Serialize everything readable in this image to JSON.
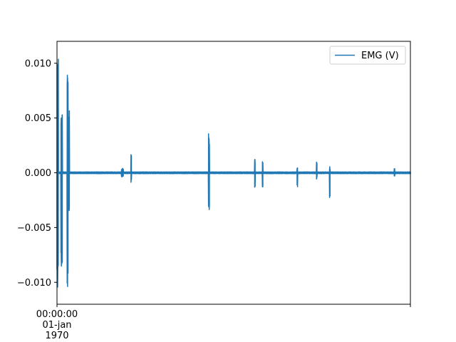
{
  "chart_data": {
    "type": "line",
    "title": "",
    "xlabel": "",
    "ylabel": "",
    "xlim": [
      0,
      100
    ],
    "ylim": [
      -0.012,
      0.012
    ],
    "grid": false,
    "legend": {
      "position": "top-right",
      "entries": [
        "EMG (V)"
      ]
    },
    "y_ticks": [
      {
        "value": 0.01,
        "label": "0.010"
      },
      {
        "value": 0.005,
        "label": "0.005"
      },
      {
        "value": 0.0,
        "label": "0.000"
      },
      {
        "value": -0.005,
        "label": "−0.005"
      },
      {
        "value": -0.01,
        "label": "−0.010"
      }
    ],
    "x_ticks": [
      {
        "value": 0,
        "lines": [
          "00:00:00",
          "01-jan",
          "1970"
        ]
      },
      {
        "value": 100,
        "lines": []
      }
    ],
    "series": [
      {
        "name": "EMG (V)",
        "color": "#1f77b4",
        "noise_amplitude": 8e-05,
        "bursts": [
          {
            "x": 0.0,
            "width": 0.8,
            "min": -0.011,
            "max": 0.011
          },
          {
            "x": 1.3,
            "width": 0.4,
            "min": -0.0095,
            "max": 0.0055
          },
          {
            "x": 3.0,
            "width": 0.3,
            "min": -0.011,
            "max": 0.0105
          },
          {
            "x": 3.4,
            "width": 0.2,
            "min": -0.0038,
            "max": 0.0063
          },
          {
            "x": 18.5,
            "width": 0.6,
            "min": -0.0004,
            "max": 0.0004
          },
          {
            "x": 21.0,
            "width": 0.2,
            "min": -0.0009,
            "max": 0.0017
          },
          {
            "x": 43.0,
            "width": 0.3,
            "min": -0.0039,
            "max": 0.0036
          },
          {
            "x": 56.0,
            "width": 0.2,
            "min": -0.0014,
            "max": 0.0013
          },
          {
            "x": 58.2,
            "width": 0.2,
            "min": -0.0013,
            "max": 0.0012
          },
          {
            "x": 68.0,
            "width": 0.2,
            "min": -0.0013,
            "max": 0.0005
          },
          {
            "x": 73.5,
            "width": 0.2,
            "min": -0.0006,
            "max": 0.001
          },
          {
            "x": 77.2,
            "width": 0.2,
            "min": -0.0023,
            "max": 0.0006
          },
          {
            "x": 95.5,
            "width": 0.2,
            "min": -0.0003,
            "max": 0.0004
          }
        ]
      }
    ]
  }
}
